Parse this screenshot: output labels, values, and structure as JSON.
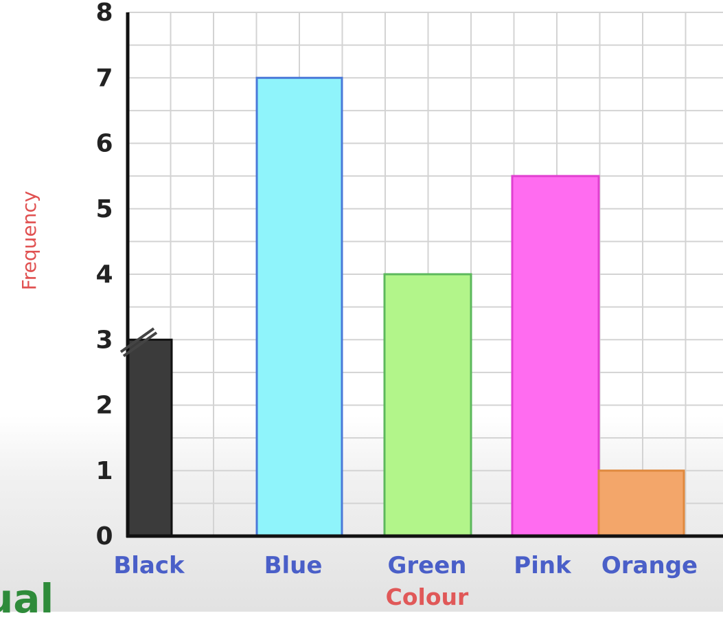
{
  "chart_data": {
    "type": "bar",
    "title": "",
    "xlabel": "Colour",
    "ylabel": "Frequency",
    "categories": [
      "Black",
      "Blue",
      "Green",
      "Pink",
      "Orange"
    ],
    "values": [
      3,
      7,
      4,
      5.5,
      1
    ],
    "colors": [
      "#3b3b3b",
      "#8ff4fb",
      "#b2f58a",
      "#ff6cf0",
      "#f3a66a"
    ],
    "outline_colors": [
      "#111111",
      "#4a78d8",
      "#5cb85c",
      "#e040d0",
      "#e0893e"
    ],
    "ylim": [
      0,
      8
    ],
    "yticks": [
      "0",
      "1",
      "2",
      "3",
      "4",
      "5",
      "6",
      "7",
      "8"
    ],
    "grid": true,
    "legend": "none"
  },
  "overlay_text": "ual"
}
